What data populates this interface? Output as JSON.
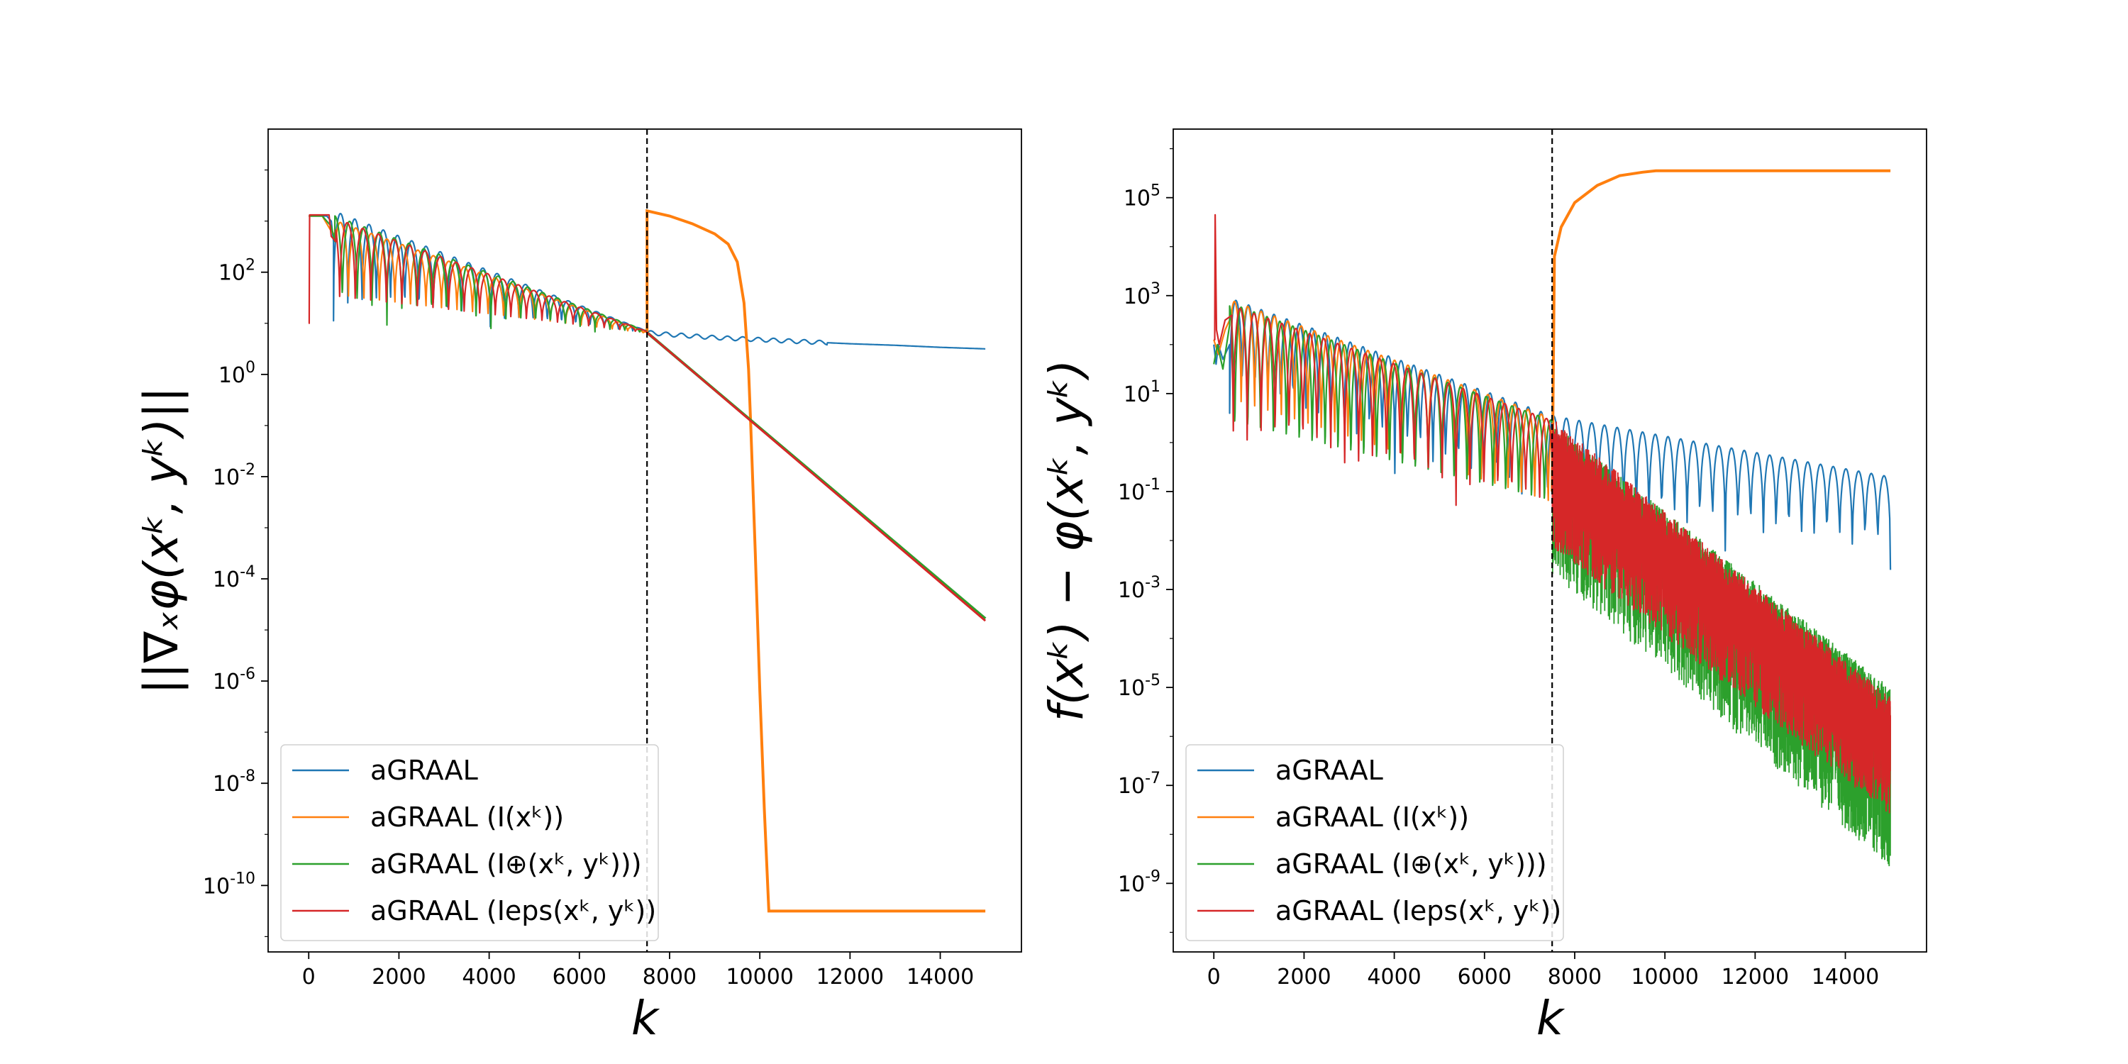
{
  "colors": {
    "aGRAAL": "#1f77b4",
    "aGRAAL_I": "#ff7f0e",
    "aGRAAL_Iplus": "#2ca02c",
    "aGRAAL_Ieps": "#d62728",
    "frame": "#000000",
    "background": "#ffffff"
  },
  "legend": {
    "items": [
      {
        "key": "aGRAAL",
        "label": "aGRAAL",
        "math": ""
      },
      {
        "key": "aGRAAL_I",
        "label": "aGRAAL",
        "math": "(I(xᵏ))"
      },
      {
        "key": "aGRAAL_Iplus",
        "label": "aGRAAL",
        "math": "(I⊕(xᵏ, yᵏ)))"
      },
      {
        "key": "aGRAAL_Ieps",
        "label": "aGRAAL",
        "math": "(Ieps(xᵏ, yᵏ))"
      }
    ]
  },
  "chart_data": [
    {
      "type": "line",
      "title": "",
      "xlabel": "k",
      "ylabel": "||∇ₓφ(xᵏ, yᵏ)||",
      "yscale": "log",
      "xlim": [
        -900,
        15800
      ],
      "ylim_exp": [
        -11.3,
        4.8
      ],
      "xticks": [
        0,
        2000,
        4000,
        6000,
        8000,
        10000,
        12000,
        14000
      ],
      "xtick_labels": [
        "0",
        "2000",
        "4000",
        "6000",
        "8000",
        "10000",
        "12000",
        "14000"
      ],
      "yticks_exp": [
        2,
        0,
        -2,
        -4,
        -6,
        -8,
        -10
      ],
      "ytick_labels": [
        {
          "b": "10",
          "e": "2"
        },
        {
          "b": "10",
          "e": "0"
        },
        {
          "b": "10",
          "e": "-2"
        },
        {
          "b": "10",
          "e": "-4"
        },
        {
          "b": "10",
          "e": "-6"
        },
        {
          "b": "10",
          "e": "-8"
        },
        {
          "b": "10",
          "e": "-10"
        }
      ],
      "vline_x": 7500,
      "legend_position": "lower-left",
      "series": [
        {
          "key": "aGRAAL",
          "name": "aGRAAL",
          "envelope": {
            "start": 550,
            "end": 7500,
            "x": [
              550,
              7500
            ],
            "upper": [
              3.2,
              0.85
            ],
            "lower": [
              1.05,
              0.82
            ],
            "cycles": 22
          },
          "direct": {
            "x": [
              0,
              80,
              400,
              500,
              550
            ],
            "y": [
              3.1,
              3.1,
              3.1,
              3.0,
              2.6
            ]
          },
          "after": {
            "x": [
              7500,
              8000,
              9000,
              10000,
              11000,
              12000,
              13000,
              14000,
              15000
            ],
            "y": [
              0.82,
              0.78,
              0.72,
              0.68,
              0.64,
              0.6,
              0.57,
              0.53,
              0.5
            ],
            "osc_amp": 0.04,
            "osc_period": 340,
            "osc_until": 11500
          }
        },
        {
          "key": "aGRAAL_I",
          "name": "aGRAAL (I(xᵏ))",
          "envelope": {
            "start": 620,
            "end": 7500,
            "x": [
              620,
              7500
            ],
            "upper": [
              3.0,
              0.83
            ],
            "lower": [
              1.1,
              0.8
            ],
            "cycles": 20,
            "phase": 0.25
          },
          "direct": {
            "x": [
              0,
              300,
              500,
              620
            ],
            "y": [
              3.1,
              3.1,
              2.8,
              2.7
            ]
          },
          "after": {
            "x": [
              7500,
              7500,
              8000,
              8500,
              9000,
              9300,
              9500,
              9650,
              9750,
              9800,
              9900,
              10000,
              10100,
              10180,
              10200,
              12000,
              15000
            ],
            "y": [
              0.82,
              3.2,
              3.1,
              2.95,
              2.75,
              2.55,
              2.2,
              1.4,
              0.1,
              -1.0,
              -3.5,
              -6.2,
              -8.5,
              -10.1,
              -10.5,
              -10.5,
              -10.5
            ]
          }
        },
        {
          "key": "aGRAAL_Iplus",
          "name": "aGRAAL (I⊕(xᵏ, yᵏ)))",
          "envelope": {
            "start": 580,
            "end": 7500,
            "x": [
              580,
              7500
            ],
            "upper": [
              3.1,
              0.85
            ],
            "lower": [
              1.0,
              0.8
            ],
            "cycles": 21,
            "phase": 0.5
          },
          "direct": {
            "x": [
              0,
              300,
              500,
              580
            ],
            "y": [
              3.1,
              3.1,
              2.9,
              2.6
            ]
          },
          "after": {
            "x": [
              7500,
              15000
            ],
            "y": [
              0.82,
              -4.78
            ]
          }
        },
        {
          "key": "aGRAAL_Ieps",
          "name": "aGRAAL (Ieps(xᵏ, yᵏ))",
          "envelope": {
            "start": 600,
            "end": 7500,
            "x": [
              600,
              7500
            ],
            "upper": [
              3.05,
              0.84
            ],
            "lower": [
              1.05,
              0.81
            ],
            "cycles": 20,
            "phase": 0.75
          },
          "direct": {
            "x": [
              0,
              10,
              15,
              20,
              30,
              40,
              450,
              500,
              600
            ],
            "y": [
              1.0,
              1.0,
              2.2,
              3.12,
              3.12,
              3.12,
              3.12,
              2.7,
              2.6
            ]
          },
          "after": {
            "x": [
              7500,
              15000
            ],
            "y": [
              0.82,
              -4.82
            ]
          }
        }
      ]
    },
    {
      "type": "line",
      "title": "",
      "xlabel": "k",
      "ylabel": "f(xᵏ) − φ(xᵏ, yᵏ)",
      "yscale": "log",
      "xlim": [
        -900,
        15800
      ],
      "ylim_exp": [
        -10.4,
        6.4
      ],
      "xticks": [
        0,
        2000,
        4000,
        6000,
        8000,
        10000,
        12000,
        14000
      ],
      "xtick_labels": [
        "0",
        "2000",
        "4000",
        "6000",
        "8000",
        "10000",
        "12000",
        "14000"
      ],
      "yticks_exp": [
        5,
        3,
        1,
        -1,
        -3,
        -5,
        -7,
        -9
      ],
      "ytick_labels": [
        {
          "b": "10",
          "e": "5"
        },
        {
          "b": "10",
          "e": "3"
        },
        {
          "b": "10",
          "e": "1"
        },
        {
          "b": "10",
          "e": "-1"
        },
        {
          "b": "10",
          "e": "-3"
        },
        {
          "b": "10",
          "e": "-5"
        },
        {
          "b": "10",
          "e": "-7"
        },
        {
          "b": "10",
          "e": "-9"
        }
      ],
      "vline_x": 7500,
      "legend_position": "lower-left",
      "series": [
        {
          "key": "aGRAAL",
          "name": "aGRAAL",
          "envelope": {
            "start": 350,
            "end": 15000,
            "x": [
              350,
              7500,
              15000
            ],
            "upper": [
              2.95,
              0.55,
              -0.7
            ],
            "lower": [
              0.6,
              -1.8,
              -2.6
            ],
            "cycles": 52
          },
          "direct": {
            "x": [
              0,
              50,
              100,
              200,
              350
            ],
            "y": [
              2.0,
              1.6,
              2.0,
              1.7,
              2.0
            ]
          },
          "after": null
        },
        {
          "key": "aGRAAL_I",
          "name": "aGRAAL (I(xᵏ))",
          "envelope": {
            "start": 400,
            "end": 7500,
            "x": [
              400,
              7500
            ],
            "upper": [
              2.9,
              0.5
            ],
            "lower": [
              0.2,
              -1.8
            ],
            "cycles": 24,
            "phase": 0.3
          },
          "direct": {
            "x": [
              0,
              100,
              250,
              400
            ],
            "y": [
              2.1,
              1.8,
              2.3,
              2.6
            ]
          },
          "after": {
            "x": [
              7500,
              7550,
              7700,
              8000,
              8500,
              9000,
              9500,
              9800,
              15000
            ],
            "y": [
              -1.0,
              3.8,
              4.4,
              4.9,
              5.25,
              5.45,
              5.52,
              5.55,
              5.55
            ]
          }
        },
        {
          "key": "aGRAAL_Iplus",
          "name": "aGRAAL (I⊕(xᵏ, yᵏ)))",
          "envelope": {
            "start": 350,
            "end": 7500,
            "x": [
              350,
              7500
            ],
            "upper": [
              2.85,
              0.45
            ],
            "lower": [
              -0.6,
              -1.9
            ],
            "cycles": 25,
            "phase": 0.6
          },
          "direct": {
            "x": [
              0,
              80,
              200,
              350
            ],
            "y": [
              1.6,
              2.0,
              1.5,
              2.4
            ]
          },
          "after": {
            "x": [
              7500,
              15000
            ],
            "upper": [
              0.4,
              -5.0
            ],
            "lower": [
              -2.2,
              -8.2
            ],
            "mid": [
              -0.6,
              -6.6
            ],
            "noise": 0.9
          }
        },
        {
          "key": "aGRAAL_Ieps",
          "name": "aGRAAL (Ieps(xᵏ, yᵏ))",
          "envelope": {
            "start": 400,
            "end": 7500,
            "x": [
              400,
              7500
            ],
            "upper": [
              2.8,
              0.45
            ],
            "lower": [
              -0.3,
              -1.7
            ],
            "cycles": 23,
            "phase": 0.9
          },
          "direct": {
            "x": [
              0,
              20,
              30,
              60,
              120,
              250,
              400
            ],
            "y": [
              2.1,
              2.1,
              4.65,
              2.3,
              2.0,
              2.5,
              2.6
            ]
          },
          "after": {
            "x": [
              7500,
              15000
            ],
            "upper": [
              0.5,
              -5.2
            ],
            "lower": [
              -2.0,
              -7.5
            ],
            "mid": [
              -0.6,
              -6.3
            ],
            "noise": 0.7
          }
        }
      ]
    }
  ]
}
